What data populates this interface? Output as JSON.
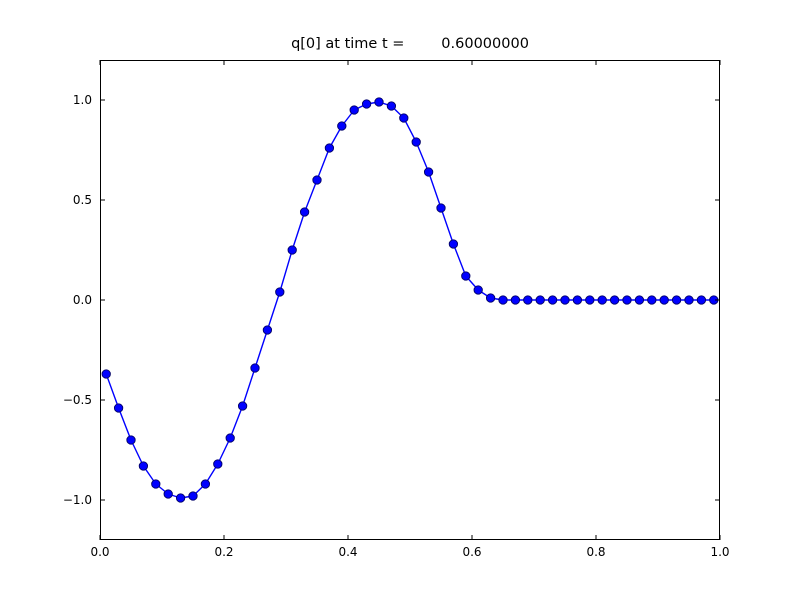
{
  "figure": {
    "background": "#ffffff"
  },
  "chart_data": {
    "type": "line",
    "title": "q[0] at time t =        0.60000000",
    "xlabel": "",
    "ylabel": "",
    "xlim": [
      0.0,
      1.0
    ],
    "ylim": [
      -1.2,
      1.2
    ],
    "grid": false,
    "legend_position": "none",
    "x_ticks": {
      "values": [
        0.0,
        0.2,
        0.4,
        0.6,
        0.8,
        1.0
      ],
      "labels": [
        "0.0",
        "0.2",
        "0.4",
        "0.6",
        "0.8",
        "1.0"
      ]
    },
    "y_ticks": {
      "values": [
        1.0,
        0.5,
        0.0,
        -0.5,
        -1.0
      ],
      "labels": [
        "1.0",
        "0.5",
        "0.0",
        "−0.5",
        "−1.0"
      ]
    },
    "axes_color": "#000000",
    "series": [
      {
        "name": "q[0]",
        "line_color": "#0000ff",
        "marker": "circle",
        "marker_face_color": "#0000ff",
        "marker_edge_color": "#000066",
        "x": [
          0.01,
          0.03,
          0.05,
          0.07,
          0.09,
          0.11,
          0.13,
          0.15,
          0.17,
          0.19,
          0.21,
          0.23,
          0.25,
          0.27,
          0.29,
          0.31,
          0.33,
          0.35,
          0.37,
          0.39,
          0.41,
          0.43,
          0.45,
          0.47,
          0.49,
          0.51,
          0.53,
          0.55,
          0.57,
          0.59,
          0.61,
          0.63,
          0.65,
          0.67,
          0.69,
          0.71,
          0.73,
          0.75,
          0.77,
          0.79,
          0.81,
          0.83,
          0.85,
          0.87,
          0.89,
          0.91,
          0.93,
          0.95,
          0.97,
          0.99
        ],
        "y": [
          -0.37,
          -0.54,
          -0.7,
          -0.83,
          -0.92,
          -0.97,
          -0.99,
          -0.98,
          -0.92,
          -0.82,
          -0.69,
          -0.53,
          -0.34,
          -0.15,
          0.04,
          0.25,
          0.44,
          0.6,
          0.76,
          0.87,
          0.95,
          0.98,
          0.99,
          0.97,
          0.91,
          0.79,
          0.64,
          0.46,
          0.28,
          0.12,
          0.05,
          0.01,
          0.0,
          0.0,
          0.0,
          0.0,
          0.0,
          0.0,
          0.0,
          0.0,
          0.0,
          0.0,
          0.0,
          0.0,
          0.0,
          0.0,
          0.0,
          0.0,
          0.0,
          0.0
        ]
      }
    ]
  }
}
